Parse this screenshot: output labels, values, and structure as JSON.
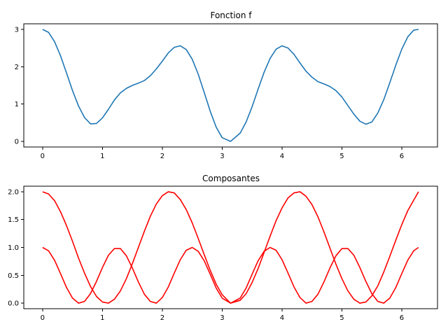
{
  "chart_data": [
    {
      "type": "line",
      "title": "Fonction f",
      "xlabel": "",
      "ylabel": "",
      "xlim": [
        -0.314,
        6.597
      ],
      "ylim": [
        -0.15,
        3.15
      ],
      "xticks": [
        0,
        1,
        2,
        3,
        4,
        5,
        6
      ],
      "xtick_labels": [
        "0",
        "1",
        "2",
        "3",
        "4",
        "5",
        "6"
      ],
      "yticks": [
        0,
        1,
        2,
        3
      ],
      "ytick_labels": [
        "0",
        "1",
        "2",
        "3"
      ],
      "grid": false,
      "series": [
        {
          "color": "#1f77b4",
          "x": [
            0,
            0.1,
            0.2,
            0.3,
            0.4,
            0.5,
            0.6,
            0.7,
            0.8,
            0.9,
            1.0,
            1.1,
            1.2,
            1.3,
            1.4,
            1.5,
            1.6,
            1.7,
            1.8,
            1.9,
            2.0,
            2.1,
            2.2,
            2.3,
            2.4,
            2.5,
            2.6,
            2.7,
            2.8,
            2.9,
            3.0,
            3.14,
            3.3,
            3.4,
            3.5,
            3.6,
            3.7,
            3.8,
            3.9,
            4.0,
            4.1,
            4.2,
            4.3,
            4.4,
            4.5,
            4.6,
            4.7,
            4.8,
            4.9,
            5.0,
            5.1,
            5.2,
            5.3,
            5.4,
            5.5,
            5.6,
            5.7,
            5.8,
            5.9,
            6.0,
            6.1,
            6.2,
            6.28
          ],
          "y": [
            3.0,
            2.92,
            2.67,
            2.29,
            1.83,
            1.36,
            0.95,
            0.64,
            0.47,
            0.48,
            0.63,
            0.86,
            1.11,
            1.3,
            1.42,
            1.5,
            1.56,
            1.63,
            1.76,
            1.94,
            2.15,
            2.37,
            2.52,
            2.56,
            2.46,
            2.2,
            1.8,
            1.31,
            0.81,
            0.38,
            0.1,
            0.0,
            0.22,
            0.52,
            0.93,
            1.4,
            1.85,
            2.22,
            2.47,
            2.56,
            2.5,
            2.33,
            2.1,
            1.88,
            1.72,
            1.6,
            1.54,
            1.47,
            1.36,
            1.19,
            0.96,
            0.73,
            0.54,
            0.46,
            0.52,
            0.76,
            1.12,
            1.57,
            2.04,
            2.47,
            2.8,
            2.98,
            3.0
          ]
        }
      ]
    },
    {
      "type": "line",
      "title": "Composantes",
      "xlabel": "",
      "ylabel": "",
      "xlim": [
        -0.314,
        6.597
      ],
      "ylim": [
        -0.1,
        2.1
      ],
      "xticks": [
        0,
        1,
        2,
        3,
        4,
        5,
        6
      ],
      "xtick_labels": [
        "0",
        "1",
        "2",
        "3",
        "4",
        "5",
        "6"
      ],
      "yticks": [
        0,
        0.5,
        1.0,
        1.5,
        2.0
      ],
      "ytick_labels": [
        "0.0",
        "0.5",
        "1.0",
        "1.5",
        "2.0"
      ],
      "grid": false,
      "series": [
        {
          "color": "#ff0000",
          "x": [
            0,
            0.1,
            0.2,
            0.3,
            0.4,
            0.5,
            0.6,
            0.7,
            0.8,
            0.9,
            1.0,
            1.1,
            1.2,
            1.3,
            1.4,
            1.5,
            1.6,
            1.7,
            1.8,
            1.9,
            2.0,
            2.1,
            2.2,
            2.3,
            2.4,
            2.5,
            2.6,
            2.7,
            2.8,
            2.9,
            3.0,
            3.14,
            3.3,
            3.4,
            3.5,
            3.6,
            3.7,
            3.8,
            3.9,
            4.0,
            4.1,
            4.2,
            4.3,
            4.4,
            4.5,
            4.6,
            4.7,
            4.8,
            4.9,
            5.0,
            5.1,
            5.2,
            5.3,
            5.4,
            5.5,
            5.6,
            5.7,
            5.8,
            5.9,
            6.0,
            6.1,
            6.2,
            6.28
          ],
          "y": [
            2.0,
            1.96,
            1.84,
            1.64,
            1.39,
            1.11,
            0.81,
            0.54,
            0.3,
            0.12,
            0.02,
            0.0,
            0.07,
            0.22,
            0.44,
            0.71,
            1.0,
            1.29,
            1.56,
            1.78,
            1.93,
            2.0,
            1.98,
            1.86,
            1.68,
            1.44,
            1.16,
            0.87,
            0.59,
            0.34,
            0.15,
            0.0,
            0.05,
            0.17,
            0.37,
            0.62,
            0.91,
            1.2,
            1.48,
            1.71,
            1.89,
            1.98,
            2.0,
            1.92,
            1.77,
            1.55,
            1.28,
            0.99,
            0.7,
            0.44,
            0.22,
            0.07,
            0.0,
            0.02,
            0.13,
            0.31,
            0.56,
            0.84,
            1.13,
            1.41,
            1.66,
            1.85,
            2.0
          ]
        },
        {
          "color": "#ff0000",
          "x": [
            0,
            0.1,
            0.2,
            0.3,
            0.4,
            0.5,
            0.6,
            0.7,
            0.8,
            0.9,
            1.0,
            1.1,
            1.2,
            1.3,
            1.4,
            1.5,
            1.6,
            1.7,
            1.8,
            1.9,
            2.0,
            2.1,
            2.2,
            2.3,
            2.4,
            2.5,
            2.6,
            2.7,
            2.8,
            2.9,
            3.0,
            3.14,
            3.3,
            3.4,
            3.5,
            3.6,
            3.7,
            3.8,
            3.9,
            4.0,
            4.1,
            4.2,
            4.3,
            4.4,
            4.5,
            4.6,
            4.7,
            4.8,
            4.9,
            5.0,
            5.1,
            5.2,
            5.3,
            5.4,
            5.5,
            5.6,
            5.7,
            5.8,
            5.9,
            6.0,
            6.1,
            6.2,
            6.28
          ],
          "y": [
            1.0,
            0.94,
            0.77,
            0.53,
            0.28,
            0.09,
            0.0,
            0.03,
            0.17,
            0.39,
            0.64,
            0.86,
            0.98,
            0.98,
            0.85,
            0.63,
            0.38,
            0.16,
            0.03,
            0.0,
            0.1,
            0.29,
            0.54,
            0.78,
            0.95,
            1.0,
            0.93,
            0.76,
            0.52,
            0.27,
            0.09,
            0.0,
            0.09,
            0.27,
            0.52,
            0.76,
            0.93,
            1.0,
            0.95,
            0.78,
            0.54,
            0.29,
            0.1,
            0.0,
            0.03,
            0.16,
            0.38,
            0.63,
            0.85,
            0.98,
            0.98,
            0.86,
            0.64,
            0.39,
            0.17,
            0.03,
            0.0,
            0.09,
            0.28,
            0.53,
            0.77,
            0.94,
            1.0
          ]
        }
      ]
    }
  ]
}
